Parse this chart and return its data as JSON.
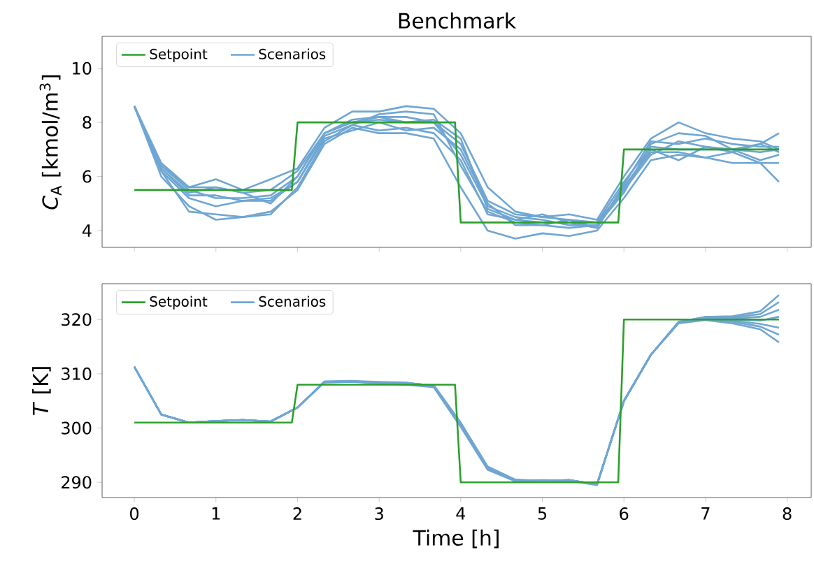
{
  "chart_data": [
    {
      "type": "line",
      "title": "Benchmark",
      "ylabel": "*C*$_{A}$ [kmol/m$^{3}$]",
      "legend": "top left",
      "tick_labels": "y",
      "grid": false,
      "xlim": [
        -0.395,
        8.295
      ],
      "ylim": [
        3.38,
        11.18
      ],
      "xticks": [
        0,
        1,
        2,
        3,
        4,
        5,
        6,
        7,
        8
      ],
      "yticks": [
        4,
        6,
        8,
        10
      ],
      "x": [
        0,
        0.33,
        0.67,
        1,
        1.33,
        1.67,
        2,
        2.33,
        2.67,
        3,
        3.33,
        3.67,
        4,
        4.33,
        4.67,
        5,
        5.33,
        5.67,
        6,
        6.33,
        6.67,
        7,
        7.33,
        7.67,
        7.9
      ],
      "series": [
        {
          "name": "Setpoint",
          "color": "#2ca02c",
          "x": [
            0,
            1.93,
            2.0,
            3.93,
            4.0,
            5.93,
            6.0,
            7.9
          ],
          "values": [
            5.5,
            5.5,
            8,
            8,
            4.3,
            4.3,
            7,
            7
          ]
        },
        {
          "name": "Scenarios",
          "color": "#6fa6d3",
          "values": [
            8.6,
            6.4,
            5.6,
            5.6,
            5.4,
            5.5,
            6.2,
            7.6,
            8.0,
            8.1,
            8.0,
            8.0,
            7.2,
            5.1,
            4.6,
            4.5,
            4.4,
            4.3,
            5.8,
            7.1,
            7.0,
            7.0,
            7.0,
            6.9,
            7.0
          ]
        },
        {
          "color": "#6fa6d3",
          "values": [
            8.6,
            6.2,
            4.7,
            4.6,
            4.5,
            4.6,
            5.6,
            7.3,
            7.9,
            8.3,
            8.4,
            8.3,
            6.4,
            4.7,
            4.3,
            4.2,
            4.1,
            4.2,
            5.4,
            7.2,
            7.6,
            7.5,
            7.0,
            7.2,
            7.6
          ]
        },
        {
          "color": "#6fa6d3",
          "values": [
            8.6,
            6.0,
            4.9,
            4.4,
            4.5,
            4.7,
            5.5,
            7.2,
            7.8,
            7.6,
            7.6,
            7.4,
            5.6,
            4.0,
            3.7,
            3.9,
            3.8,
            4.0,
            5.2,
            6.6,
            6.8,
            6.7,
            6.5,
            6.5,
            6.5
          ]
        },
        {
          "color": "#6fa6d3",
          "values": [
            8.6,
            6.5,
            5.6,
            5.9,
            5.5,
            5.9,
            6.3,
            7.8,
            8.4,
            8.4,
            8.6,
            8.5,
            7.6,
            5.6,
            4.7,
            4.5,
            4.6,
            4.4,
            6.0,
            7.4,
            8.0,
            7.6,
            7.4,
            7.3,
            7.0
          ]
        },
        {
          "color": "#6fa6d3",
          "values": [
            8.6,
            6.3,
            5.3,
            5.3,
            5.1,
            5.2,
            5.8,
            7.5,
            7.9,
            7.7,
            7.8,
            7.6,
            6.6,
            4.6,
            4.4,
            4.3,
            4.3,
            4.1,
            5.6,
            6.9,
            6.9,
            6.7,
            6.9,
            6.5,
            5.8
          ]
        },
        {
          "color": "#6fa6d3",
          "values": [
            8.6,
            6.4,
            5.5,
            5.2,
            5.2,
            5.3,
            6.0,
            7.6,
            8.1,
            8.2,
            8.2,
            8.0,
            6.8,
            4.9,
            4.5,
            4.4,
            4.2,
            4.2,
            5.6,
            7.0,
            6.6,
            7.1,
            7.0,
            6.6,
            6.8
          ]
        },
        {
          "color": "#6fa6d3",
          "values": [
            8.6,
            6.2,
            5.2,
            4.9,
            5.1,
            5.1,
            5.8,
            7.4,
            7.7,
            8.0,
            7.7,
            7.8,
            7.0,
            5.0,
            4.2,
            4.2,
            4.4,
            4.1,
            5.7,
            7.3,
            7.2,
            7.4,
            7.2,
            7.1,
            7.1
          ]
        },
        {
          "color": "#6fa6d3",
          "values": [
            8.6,
            6.3,
            5.4,
            5.6,
            5.4,
            5.0,
            6.0,
            7.6,
            8.0,
            8.2,
            8.0,
            8.1,
            7.4,
            4.8,
            4.4,
            4.6,
            4.3,
            4.3,
            5.5,
            6.8,
            7.3,
            7.1,
            6.9,
            7.2,
            6.9
          ]
        }
      ]
    },
    {
      "type": "line",
      "xlabel": "Time [h]",
      "ylabel": "*T* [K]",
      "legend": "top left",
      "grid": false,
      "xlim": [
        -0.395,
        8.295
      ],
      "ylim": [
        287.2,
        326.6
      ],
      "xticks": [
        0,
        1,
        2,
        3,
        4,
        5,
        6,
        7,
        8
      ],
      "yticks": [
        290,
        300,
        310,
        320
      ],
      "x": [
        0,
        0.33,
        0.67,
        1,
        1.33,
        1.67,
        2,
        2.33,
        2.67,
        3,
        3.33,
        3.67,
        4,
        4.33,
        4.67,
        5,
        5.33,
        5.67,
        6,
        6.33,
        6.67,
        7,
        7.33,
        7.67,
        7.9
      ],
      "series": [
        {
          "name": "Setpoint",
          "color": "#2ca02c",
          "x": [
            0,
            1.93,
            2.0,
            3.93,
            4.0,
            5.93,
            6.0,
            7.9
          ],
          "values": [
            301,
            301,
            308,
            308,
            290,
            290,
            320,
            320
          ]
        },
        {
          "name": "Scenarios",
          "color": "#6fa6d3",
          "values": [
            311.3,
            302.5,
            301.0,
            301.3,
            301.5,
            301.2,
            303.8,
            308.5,
            308.6,
            308.4,
            308.3,
            307.8,
            300.8,
            292.7,
            290.4,
            290.3,
            290.4,
            289.6,
            305.0,
            313.5,
            319.5,
            320.5,
            320.6,
            321.5,
            324.5
          ]
        },
        {
          "color": "#6fa6d3",
          "values": [
            311.3,
            302.5,
            301.0,
            301.3,
            301.5,
            301.2,
            303.8,
            308.6,
            308.7,
            308.5,
            308.4,
            307.6,
            300.5,
            292.5,
            290.3,
            290.4,
            290.3,
            289.7,
            305.0,
            313.5,
            319.6,
            320.4,
            320.4,
            321.0,
            323.2
          ]
        },
        {
          "color": "#6fa6d3",
          "values": [
            311.3,
            302.5,
            301.0,
            301.3,
            301.5,
            301.2,
            303.8,
            308.4,
            308.5,
            308.3,
            308.2,
            307.9,
            301.0,
            292.9,
            290.5,
            290.3,
            290.4,
            289.6,
            305.0,
            313.5,
            319.5,
            320.3,
            320.2,
            320.5,
            321.8
          ]
        },
        {
          "color": "#6fa6d3",
          "values": [
            311.3,
            302.5,
            301.0,
            301.3,
            301.5,
            301.2,
            303.8,
            308.5,
            308.6,
            308.2,
            308.0,
            307.5,
            300.2,
            292.3,
            290.2,
            290.2,
            290.3,
            289.5,
            305.0,
            313.5,
            319.5,
            320.2,
            320.0,
            319.8,
            320.5
          ]
        },
        {
          "color": "#6fa6d3",
          "values": [
            311.3,
            302.5,
            301.0,
            301.3,
            301.5,
            301.2,
            303.8,
            308.5,
            308.6,
            308.4,
            308.3,
            307.8,
            300.8,
            292.7,
            290.4,
            290.3,
            290.4,
            289.6,
            305.0,
            313.5,
            319.4,
            320.1,
            319.8,
            319.2,
            318.5
          ]
        },
        {
          "color": "#6fa6d3",
          "values": [
            311.3,
            302.5,
            301.0,
            301.3,
            301.5,
            301.2,
            303.8,
            308.5,
            308.6,
            308.4,
            308.3,
            307.8,
            300.8,
            292.7,
            290.4,
            290.3,
            290.4,
            289.6,
            305.0,
            313.5,
            319.4,
            320.0,
            319.6,
            318.7,
            317.2
          ]
        },
        {
          "color": "#6fa6d3",
          "values": [
            311.3,
            302.5,
            301.0,
            301.3,
            301.5,
            301.2,
            303.8,
            308.5,
            308.6,
            308.4,
            308.3,
            307.8,
            300.8,
            292.7,
            290.4,
            290.3,
            290.4,
            289.6,
            305.0,
            313.5,
            319.3,
            319.9,
            319.3,
            318.2,
            315.8
          ]
        }
      ]
    }
  ]
}
